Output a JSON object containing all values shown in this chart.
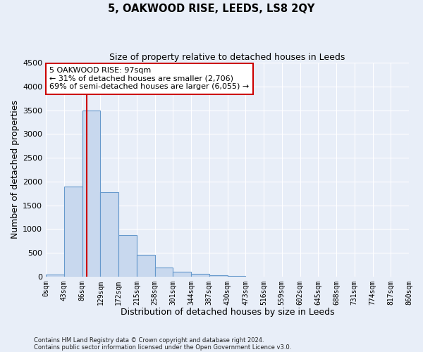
{
  "title": "5, OAKWOOD RISE, LEEDS, LS8 2QY",
  "subtitle": "Size of property relative to detached houses in Leeds",
  "xlabel": "Distribution of detached houses by size in Leeds",
  "ylabel": "Number of detached properties",
  "bar_color": "#c8d8ee",
  "bar_edge_color": "#6699cc",
  "background_color": "#e8eef8",
  "plot_bg_color": "#e8eef8",
  "grid_color": "#ffffff",
  "bin_edges": [
    0,
    43,
    86,
    129,
    172,
    215,
    258,
    301,
    344,
    387,
    430,
    473,
    516,
    559,
    602,
    645,
    688,
    731,
    774,
    817,
    860
  ],
  "bar_heights": [
    45,
    1900,
    3500,
    1775,
    875,
    450,
    185,
    100,
    60,
    30,
    15,
    0,
    0,
    0,
    0,
    0,
    0,
    0,
    0,
    0
  ],
  "tick_labels": [
    "0sqm",
    "43sqm",
    "86sqm",
    "129sqm",
    "172sqm",
    "215sqm",
    "258sqm",
    "301sqm",
    "344sqm",
    "387sqm",
    "430sqm",
    "473sqm",
    "516sqm",
    "559sqm",
    "602sqm",
    "645sqm",
    "688sqm",
    "731sqm",
    "774sqm",
    "817sqm",
    "860sqm"
  ],
  "ylim": [
    0,
    4500
  ],
  "yticks": [
    0,
    500,
    1000,
    1500,
    2000,
    2500,
    3000,
    3500,
    4000,
    4500
  ],
  "property_line_x": 97,
  "property_line_color": "#cc0000",
  "annotation_text_line1": "5 OAKWOOD RISE: 97sqm",
  "annotation_text_line2": "← 31% of detached houses are smaller (2,706)",
  "annotation_text_line3": "69% of semi-detached houses are larger (6,055) →",
  "annotation_box_color": "#ffffff",
  "annotation_box_edge_color": "#cc0000",
  "footer_line1": "Contains HM Land Registry data © Crown copyright and database right 2024.",
  "footer_line2": "Contains public sector information licensed under the Open Government Licence v3.0."
}
